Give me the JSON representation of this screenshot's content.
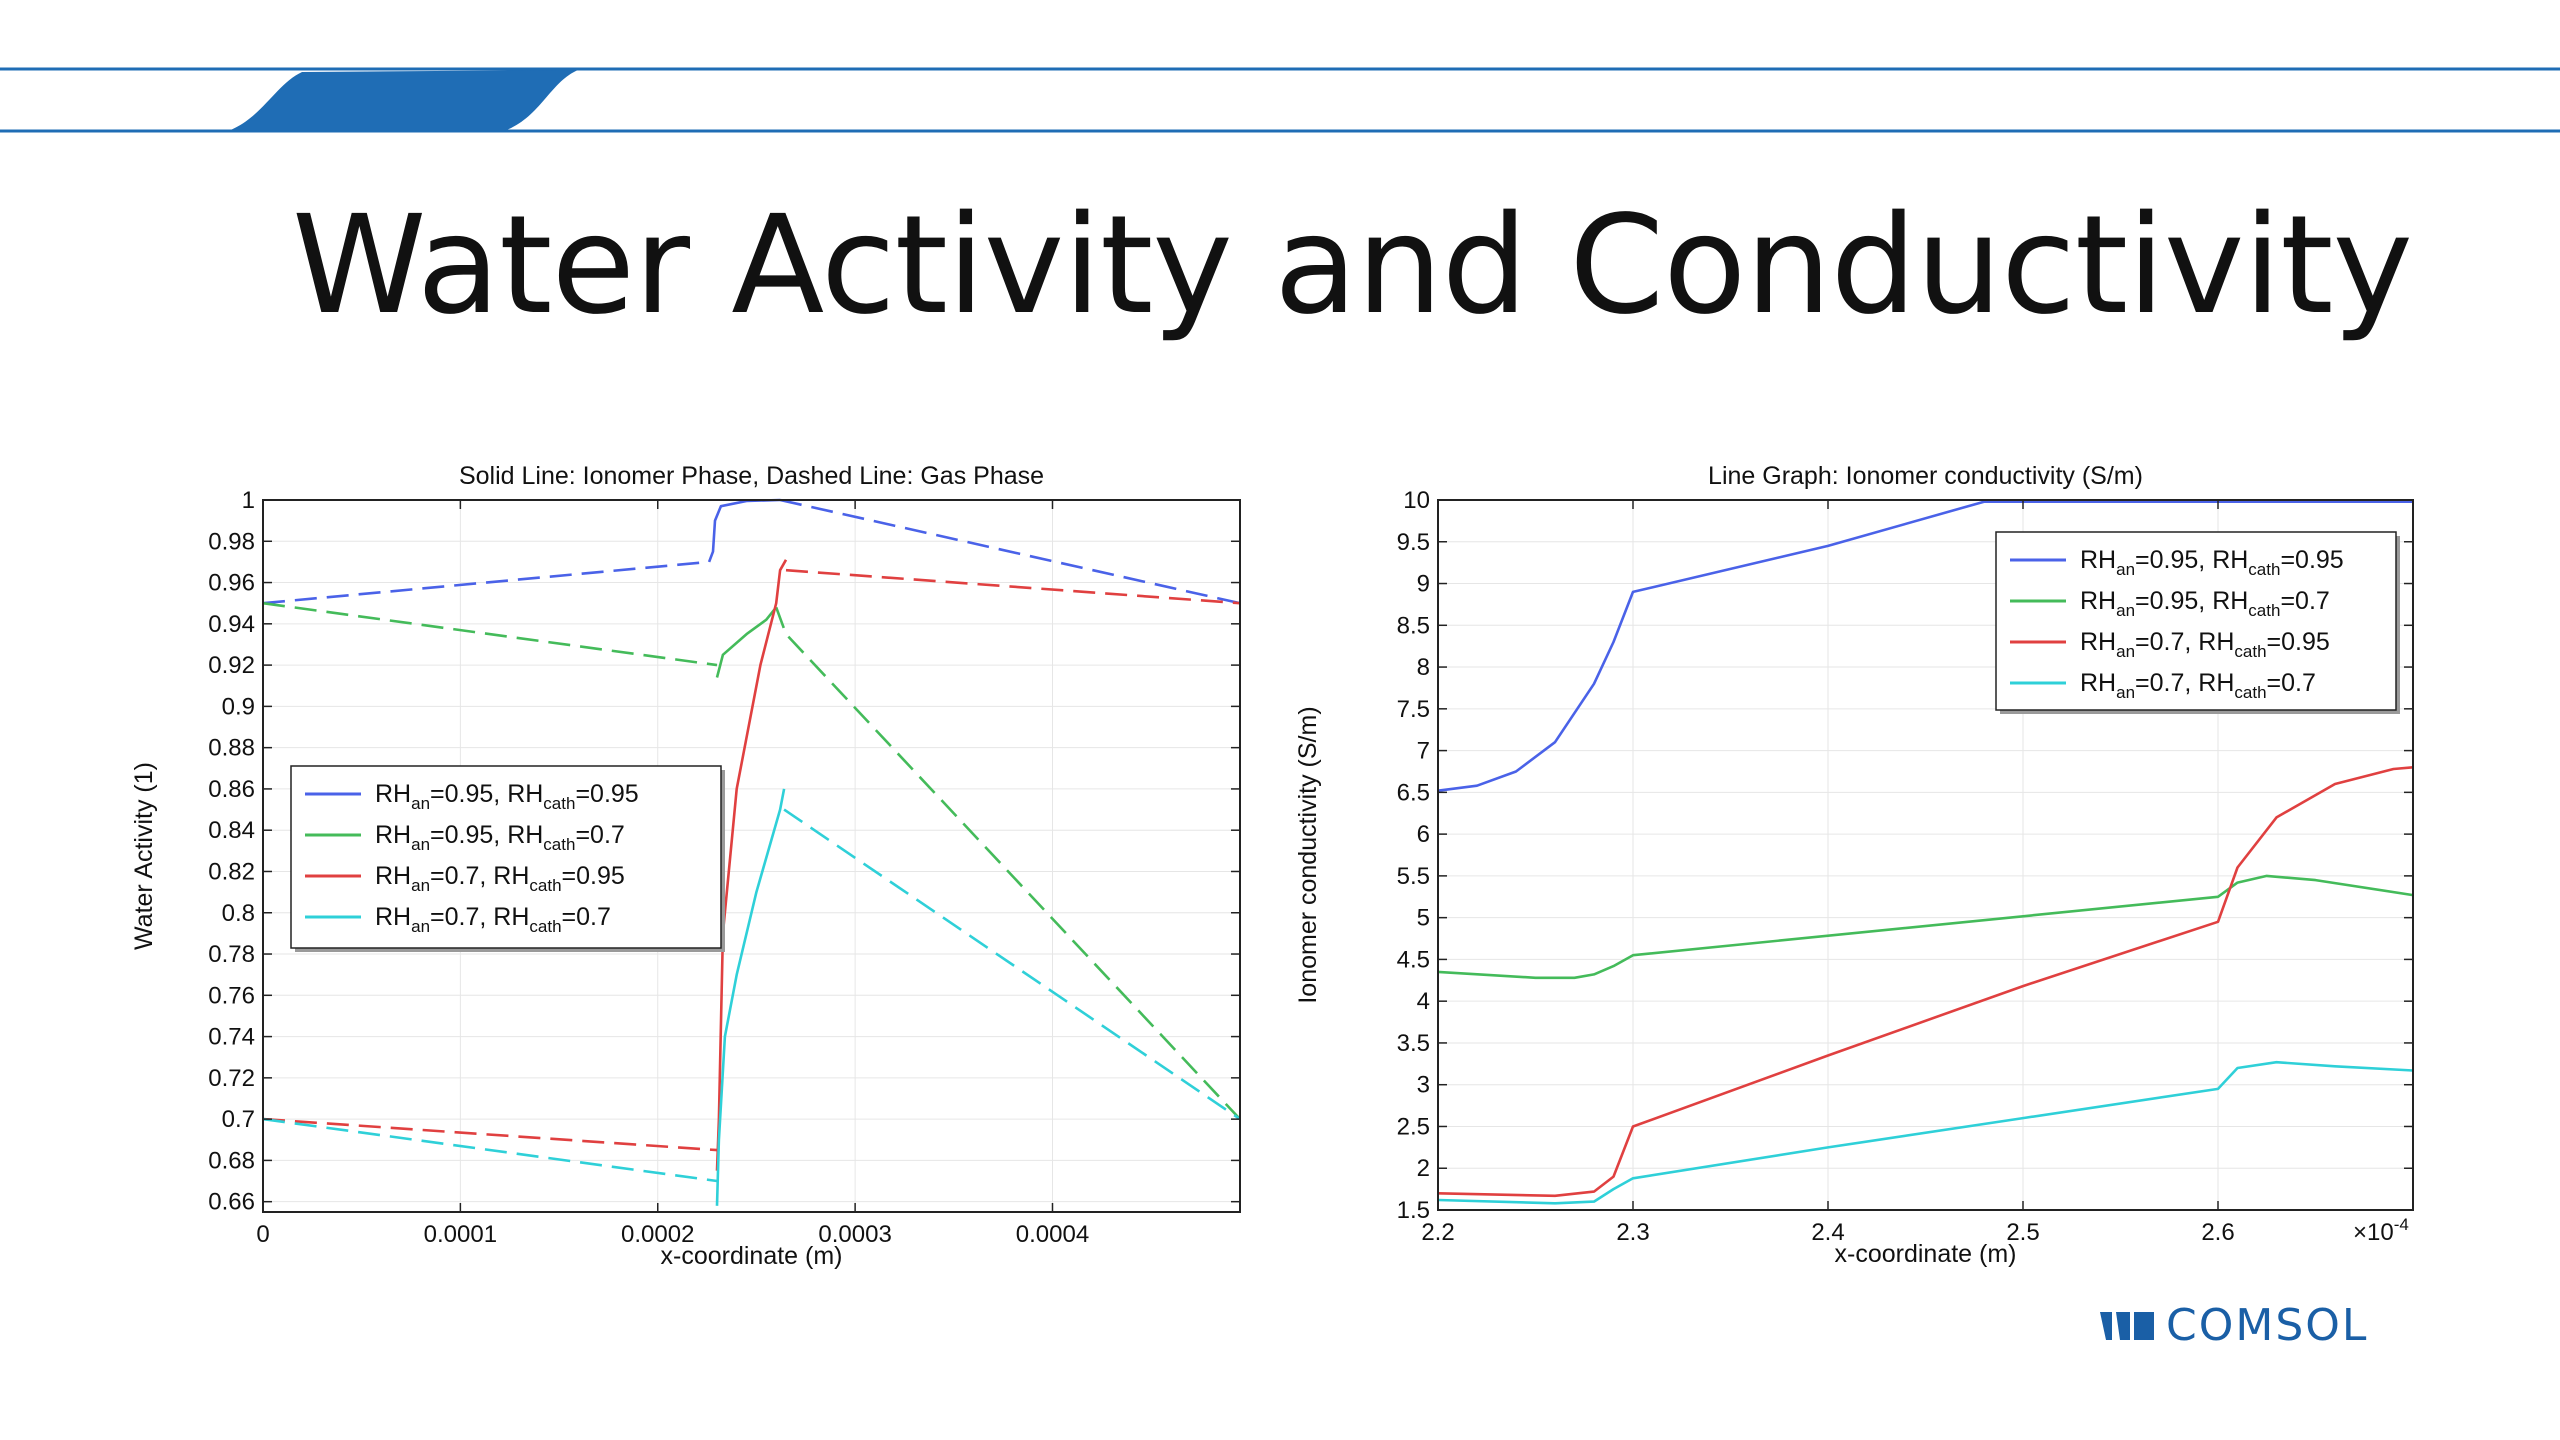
{
  "slide": {
    "title": "Water Activity and Conductivity",
    "logo_text": "COMSOL",
    "accent_color": "#1f6db5"
  },
  "chart_data": [
    {
      "type": "line",
      "title": "Solid Line: Ionomer Phase, Dashed Line: Gas Phase",
      "xlabel": "x-coordinate (m)",
      "ylabel": "Water Activity (1)",
      "xlim": [
        0,
        0.000495
      ],
      "ylim": [
        0.655,
        1.0
      ],
      "xticks": [
        0,
        0.0001,
        0.0002,
        0.0003,
        0.0004
      ],
      "xtick_labels": [
        "0",
        "0.0001",
        "0.0002",
        "0.0003",
        "0.0004"
      ],
      "yticks": [
        0.66,
        0.68,
        0.7,
        0.72,
        0.74,
        0.76,
        0.78,
        0.8,
        0.82,
        0.84,
        0.86,
        0.88,
        0.9,
        0.92,
        0.94,
        0.96,
        0.98,
        1
      ],
      "ytick_labels": [
        "0.66",
        "0.68",
        "0.7",
        "0.72",
        "0.74",
        "0.76",
        "0.78",
        "0.8",
        "0.82",
        "0.84",
        "0.86",
        "0.88",
        "0.9",
        "0.92",
        "0.94",
        "0.96",
        "0.98",
        "1"
      ],
      "grid": true,
      "legend_position": "middle-left",
      "legend": [
        {
          "rh_an_label": "RH",
          "an_sub": "an",
          "an_value": "=0.95, ",
          "rh_cath_label": "RH",
          "cath_sub": "cath",
          "cath_value": "=0.95"
        },
        {
          "rh_an_label": "RH",
          "an_sub": "an",
          "an_value": "=0.95, ",
          "rh_cath_label": "RH",
          "cath_sub": "cath",
          "cath_value": "=0.7"
        },
        {
          "rh_an_label": "RH",
          "an_sub": "an",
          "an_value": "=0.7, ",
          "rh_cath_label": "RH",
          "cath_sub": "cath",
          "cath_value": "=0.95"
        },
        {
          "rh_an_label": "RH",
          "an_sub": "an",
          "an_value": "=0.7, ",
          "rh_cath_label": "RH",
          "cath_sub": "cath",
          "cath_value": "=0.7"
        }
      ],
      "series": [
        {
          "color": "#4a62e8",
          "segments": [
            {
              "style": "dashed",
              "points": [
                [
                  0,
                  0.95
                ],
                [
                  0.000226,
                  0.97
                ]
              ]
            },
            {
              "style": "solid",
              "points": [
                [
                  0.000226,
                  0.97
                ],
                [
                  0.000228,
                  0.975
                ],
                [
                  0.000229,
                  0.99
                ],
                [
                  0.000232,
                  0.997
                ],
                [
                  0.000245,
                  0.9995
                ],
                [
                  0.000262,
                  1.0
                ]
              ]
            },
            {
              "style": "dashed",
              "points": [
                [
                  0.000262,
                  1.0
                ],
                [
                  0.000495,
                  0.95
                ]
              ]
            }
          ]
        },
        {
          "color": "#44bb5a",
          "segments": [
            {
              "style": "dashed",
              "points": [
                [
                  0,
                  0.95
                ],
                [
                  0.00023,
                  0.92
                ]
              ]
            },
            {
              "style": "solid",
              "points": [
                [
                  0.00023,
                  0.914
                ],
                [
                  0.000233,
                  0.925
                ],
                [
                  0.000245,
                  0.935
                ],
                [
                  0.000255,
                  0.942
                ],
                [
                  0.00026,
                  0.948
                ]
              ]
            },
            {
              "style": "dashed",
              "points": [
                [
                  0.00026,
                  0.948
                ],
                [
                  0.000265,
                  0.935
                ],
                [
                  0.000495,
                  0.7
                ]
              ]
            }
          ]
        },
        {
          "color": "#e04040",
          "segments": [
            {
              "style": "dashed",
              "points": [
                [
                  0,
                  0.7
                ],
                [
                  0.00023,
                  0.685
                ]
              ]
            },
            {
              "style": "solid",
              "points": [
                [
                  0.00023,
                  0.675
                ],
                [
                  0.000231,
                  0.7
                ],
                [
                  0.000233,
                  0.79
                ],
                [
                  0.00024,
                  0.86
                ],
                [
                  0.000252,
                  0.92
                ],
                [
                  0.00026,
                  0.95
                ],
                [
                  0.000262,
                  0.966
                ],
                [
                  0.000265,
                  0.971
                ]
              ]
            },
            {
              "style": "dashed",
              "points": [
                [
                  0.000265,
                  0.966
                ],
                [
                  0.000495,
                  0.95
                ]
              ]
            }
          ]
        },
        {
          "color": "#2fd0d8",
          "segments": [
            {
              "style": "dashed",
              "points": [
                [
                  0,
                  0.7
                ],
                [
                  0.00023,
                  0.67
                ]
              ]
            },
            {
              "style": "solid",
              "points": [
                [
                  0.00023,
                  0.658
                ],
                [
                  0.000231,
                  0.69
                ],
                [
                  0.000234,
                  0.74
                ],
                [
                  0.00024,
                  0.77
                ],
                [
                  0.00025,
                  0.81
                ],
                [
                  0.000262,
                  0.85
                ],
                [
                  0.000264,
                  0.86
                ]
              ]
            },
            {
              "style": "dashed",
              "points": [
                [
                  0.000264,
                  0.85
                ],
                [
                  0.000495,
                  0.7
                ]
              ]
            }
          ]
        }
      ]
    },
    {
      "type": "line",
      "title": "Line Graph: Ionomer conductivity (S/m)",
      "xlabel": "x-coordinate (m)",
      "ylabel": "Ionomer conductivity (S/m)",
      "x_multiplier_label": "×10",
      "x_multiplier_exponent": "-4",
      "xlim": [
        2.2,
        2.7
      ],
      "ylim": [
        1.5,
        10
      ],
      "xticks": [
        2.2,
        2.3,
        2.4,
        2.5,
        2.6
      ],
      "xtick_labels": [
        "2.2",
        "2.3",
        "2.4",
        "2.5",
        "2.6"
      ],
      "yticks": [
        1.5,
        2,
        2.5,
        3,
        3.5,
        4,
        4.5,
        5,
        5.5,
        6,
        6.5,
        7,
        7.5,
        8,
        8.5,
        9,
        9.5,
        10
      ],
      "ytick_labels": [
        "1.5",
        "2",
        "2.5",
        "3",
        "3.5",
        "4",
        "4.5",
        "5",
        "5.5",
        "6",
        "6.5",
        "7",
        "7.5",
        "8",
        "8.5",
        "9",
        "9.5",
        "10"
      ],
      "grid": true,
      "legend_position": "top-right",
      "legend": [
        {
          "rh_an_label": "RH",
          "an_sub": "an",
          "an_value": "=0.95, ",
          "rh_cath_label": "RH",
          "cath_sub": "cath",
          "cath_value": "=0.95"
        },
        {
          "rh_an_label": "RH",
          "an_sub": "an",
          "an_value": "=0.95, ",
          "rh_cath_label": "RH",
          "cath_sub": "cath",
          "cath_value": "=0.7"
        },
        {
          "rh_an_label": "RH",
          "an_sub": "an",
          "an_value": "=0.7, ",
          "rh_cath_label": "RH",
          "cath_sub": "cath",
          "cath_value": "=0.95"
        },
        {
          "rh_an_label": "RH",
          "an_sub": "an",
          "an_value": "=0.7, ",
          "rh_cath_label": "RH",
          "cath_sub": "cath",
          "cath_value": "=0.7"
        }
      ],
      "series": [
        {
          "color": "#4a62e8",
          "points": [
            [
              2.2,
              6.52
            ],
            [
              2.22,
              6.58
            ],
            [
              2.24,
              6.75
            ],
            [
              2.26,
              7.1
            ],
            [
              2.28,
              7.8
            ],
            [
              2.29,
              8.3
            ],
            [
              2.3,
              8.9
            ],
            [
              2.4,
              9.45
            ],
            [
              2.48,
              9.98
            ],
            [
              2.7,
              9.98
            ]
          ]
        },
        {
          "color": "#44bb5a",
          "points": [
            [
              2.2,
              4.35
            ],
            [
              2.25,
              4.28
            ],
            [
              2.27,
              4.28
            ],
            [
              2.28,
              4.32
            ],
            [
              2.29,
              4.42
            ],
            [
              2.3,
              4.55
            ],
            [
              2.6,
              5.25
            ],
            [
              2.61,
              5.42
            ],
            [
              2.625,
              5.5
            ],
            [
              2.65,
              5.45
            ],
            [
              2.7,
              5.27
            ]
          ]
        },
        {
          "color": "#e04040",
          "points": [
            [
              2.2,
              1.7
            ],
            [
              2.26,
              1.67
            ],
            [
              2.28,
              1.72
            ],
            [
              2.29,
              1.9
            ],
            [
              2.3,
              2.5
            ],
            [
              2.4,
              3.35
            ],
            [
              2.5,
              4.18
            ],
            [
              2.6,
              4.95
            ],
            [
              2.61,
              5.6
            ],
            [
              2.63,
              6.2
            ],
            [
              2.66,
              6.6
            ],
            [
              2.69,
              6.78
            ],
            [
              2.7,
              6.8
            ]
          ]
        },
        {
          "color": "#2fd0d8",
          "points": [
            [
              2.2,
              1.62
            ],
            [
              2.26,
              1.58
            ],
            [
              2.28,
              1.6
            ],
            [
              2.29,
              1.75
            ],
            [
              2.3,
              1.88
            ],
            [
              2.4,
              2.25
            ],
            [
              2.5,
              2.6
            ],
            [
              2.6,
              2.95
            ],
            [
              2.61,
              3.2
            ],
            [
              2.63,
              3.27
            ],
            [
              2.66,
              3.22
            ],
            [
              2.7,
              3.17
            ]
          ]
        }
      ]
    }
  ]
}
